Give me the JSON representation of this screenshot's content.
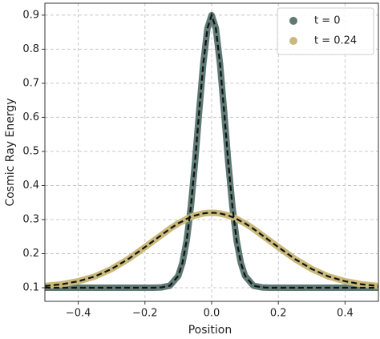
{
  "chart_data": {
    "type": "line",
    "xlabel": "Position",
    "ylabel": "Cosmic Ray Energy",
    "x": [
      -0.5,
      -0.45,
      -0.4,
      -0.35,
      -0.3,
      -0.25,
      -0.2,
      -0.175,
      -0.15,
      -0.125,
      -0.1,
      -0.0875,
      -0.075,
      -0.0625,
      -0.05,
      -0.0375,
      -0.025,
      -0.0125,
      0,
      0.0125,
      0.025,
      0.0375,
      0.05,
      0.0625,
      0.075,
      0.0875,
      0.1,
      0.125,
      0.15,
      0.175,
      0.2,
      0.25,
      0.3,
      0.35,
      0.4,
      0.45,
      0.5
    ],
    "series": [
      {
        "name": "t = 0",
        "color": "#5f7a73",
        "values": [
          0.1,
          0.1,
          0.1,
          0.1,
          0.1,
          0.1,
          0.1,
          0.1,
          0.101,
          0.106,
          0.135,
          0.173,
          0.238,
          0.336,
          0.466,
          0.616,
          0.758,
          0.862,
          0.9,
          0.862,
          0.758,
          0.616,
          0.466,
          0.336,
          0.238,
          0.173,
          0.135,
          0.106,
          0.101,
          0.1,
          0.1,
          0.1,
          0.1,
          0.1,
          0.1,
          0.1,
          0.1
        ]
      },
      {
        "name": "t = 0.24",
        "color": "#c9b97a",
        "values": [
          0.105,
          0.11,
          0.119,
          0.133,
          0.155,
          0.184,
          0.219,
          0.237,
          0.255,
          0.273,
          0.289,
          0.295,
          0.302,
          0.307,
          0.312,
          0.315,
          0.318,
          0.3195,
          0.32,
          0.3195,
          0.318,
          0.315,
          0.312,
          0.307,
          0.302,
          0.295,
          0.289,
          0.273,
          0.255,
          0.237,
          0.219,
          0.184,
          0.155,
          0.133,
          0.119,
          0.11,
          0.105
        ]
      }
    ],
    "overlay_color": "#111111",
    "xlim": [
      -0.5,
      0.5
    ],
    "ylim": [
      0.06,
      0.935
    ],
    "xticks": [
      {
        "value": -0.4,
        "label": "−0.4"
      },
      {
        "value": -0.2,
        "label": "−0.2"
      },
      {
        "value": 0,
        "label": "0.0"
      },
      0.2,
      0.4
    ],
    "yticks": [
      0.1,
      0.2,
      0.3,
      0.4,
      0.5,
      0.6,
      0.7,
      0.8,
      0.9
    ],
    "grid": true,
    "legend": "upper right"
  }
}
